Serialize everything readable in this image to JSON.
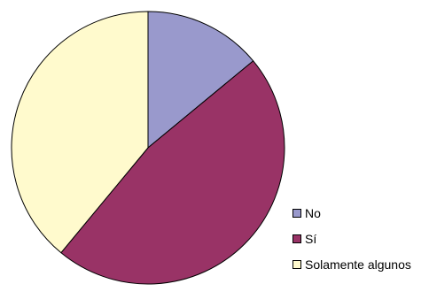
{
  "chart_data": {
    "type": "pie",
    "slices": [
      {
        "label": "No",
        "value": 14,
        "color": "#9999CC"
      },
      {
        "label": "Sí",
        "value": 47,
        "color": "#993366"
      },
      {
        "label": "Solamente algunos",
        "value": 39,
        "color": "#FFFACD"
      }
    ],
    "start_angle_deg": 0,
    "direction": "clockwise",
    "legend_position": "right-bottom",
    "title": "",
    "outline_color": "#000000"
  }
}
